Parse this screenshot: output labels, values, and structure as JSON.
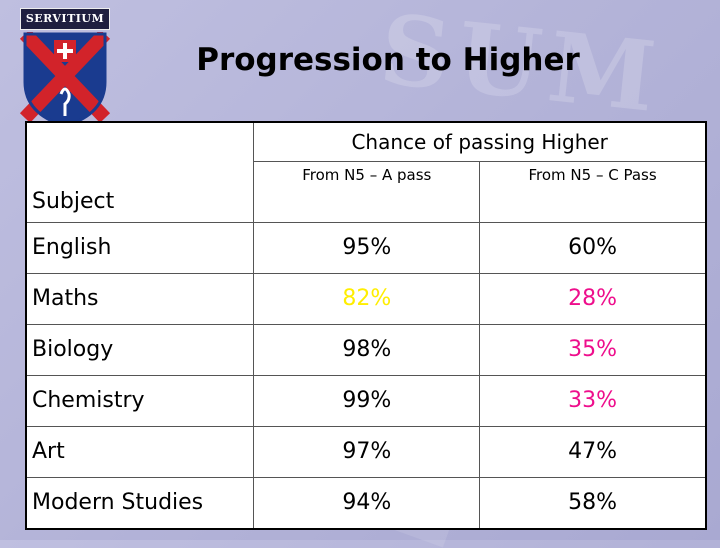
{
  "slide": {
    "title": "Progression to Higher",
    "logo_text": "SERVITIUM"
  },
  "table": {
    "group_header": "Chance of passing Higher",
    "subject_header": "Subject",
    "columns": [
      "From N5 – A pass",
      "From N5 – C Pass"
    ],
    "rows": [
      {
        "subject": "English",
        "a_pass": "95%",
        "c_pass": "60%",
        "a_color": "#000000",
        "c_color": "#000000"
      },
      {
        "subject": "Maths",
        "a_pass": "82%",
        "c_pass": "28%",
        "a_color": "#ffee00",
        "c_color": "#ee0e8c"
      },
      {
        "subject": "Biology",
        "a_pass": "98%",
        "c_pass": "35%",
        "a_color": "#000000",
        "c_color": "#ee0e8c"
      },
      {
        "subject": "Chemistry",
        "a_pass": "99%",
        "c_pass": "33%",
        "a_color": "#000000",
        "c_color": "#ee0e8c"
      },
      {
        "subject": "Art",
        "a_pass": "97%",
        "c_pass": "47%",
        "a_color": "#000000",
        "c_color": "#000000"
      },
      {
        "subject": "Modern Studies",
        "a_pass": "94%",
        "c_pass": "58%",
        "a_color": "#000000",
        "c_color": "#000000"
      }
    ]
  },
  "colors": {
    "background": "#b8b8dc",
    "highlight_yellow": "#ffee00",
    "highlight_magenta": "#ee0e8c",
    "shield_blue": "#1a3b8f",
    "shield_red": "#d2232a"
  }
}
